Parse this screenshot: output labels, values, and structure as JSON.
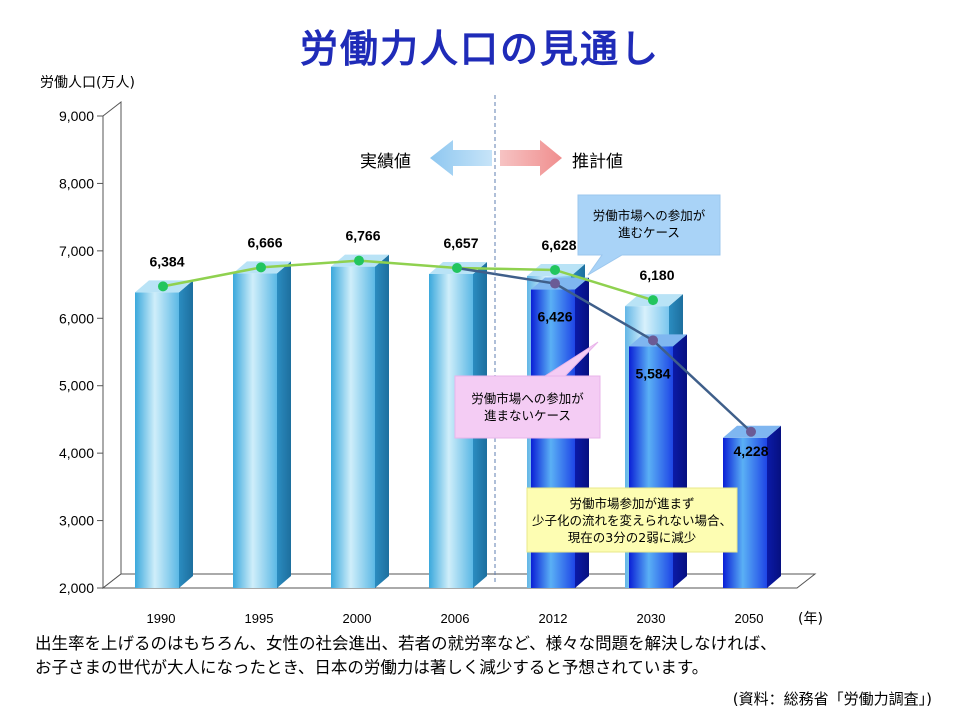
{
  "title": "労働力人口の見通し",
  "ylabel": "労働人口(万人)",
  "year_unit": "(年)",
  "legend": {
    "actual": "実績値",
    "projected": "推計値"
  },
  "callouts": {
    "participation": "労働市場への参加が\n進むケース",
    "no_participation": "労働市場への参加が\n進まないケース",
    "note": "労働市場参加が進まず\n少子化の流れを変えられない場合、\n現在の3分の2弱に減少"
  },
  "caption": "出生率を上げるのはもちろん、女性の社会進出、若者の就労率など、様々な問題を解決しなければ、\nお子さまの世代が大人になったとき、日本の労働力は著しく減少すると予想されています。",
  "source": "(資料：総務省「労働力調査」)",
  "colors": {
    "title": "#1f2bb8",
    "bar_actual": "#6fc3ec",
    "bar_projected": "#1a3fe0",
    "line_participation": "#8fd14f",
    "line_no_participation": "#3f5f8a",
    "marker_green": "#22c55e",
    "marker_purple": "#6b5b95"
  },
  "chart_data": {
    "type": "bar",
    "categories": [
      "1990",
      "1995",
      "2000",
      "2006",
      "2012",
      "2030",
      "2050"
    ],
    "ylim": [
      2000,
      9000
    ],
    "yticks": [
      2000,
      3000,
      4000,
      5000,
      6000,
      7000,
      8000,
      9000
    ],
    "ytick_labels": [
      "2,000",
      "3,000",
      "4,000",
      "5,000",
      "6,000",
      "7,000",
      "8,000",
      "9,000"
    ],
    "series": [
      {
        "name": "労働市場への参加が進むケース",
        "values": [
          6384,
          6666,
          6766,
          6657,
          6628,
          6180,
          null
        ],
        "labels": [
          "6,384",
          "6,666",
          "6,766",
          "6,657",
          "6,628",
          "6,180",
          ""
        ]
      },
      {
        "name": "労働市場への参加が進まないケース",
        "values": [
          null,
          null,
          null,
          6657,
          6426,
          5584,
          4228
        ],
        "labels": [
          "",
          "",
          "",
          "",
          "6,426",
          "5,584",
          "4,228"
        ]
      }
    ],
    "actual_categories": [
      "1990",
      "1995",
      "2000",
      "2006"
    ],
    "projected_categories": [
      "2012",
      "2030",
      "2050"
    ],
    "grid": false
  }
}
